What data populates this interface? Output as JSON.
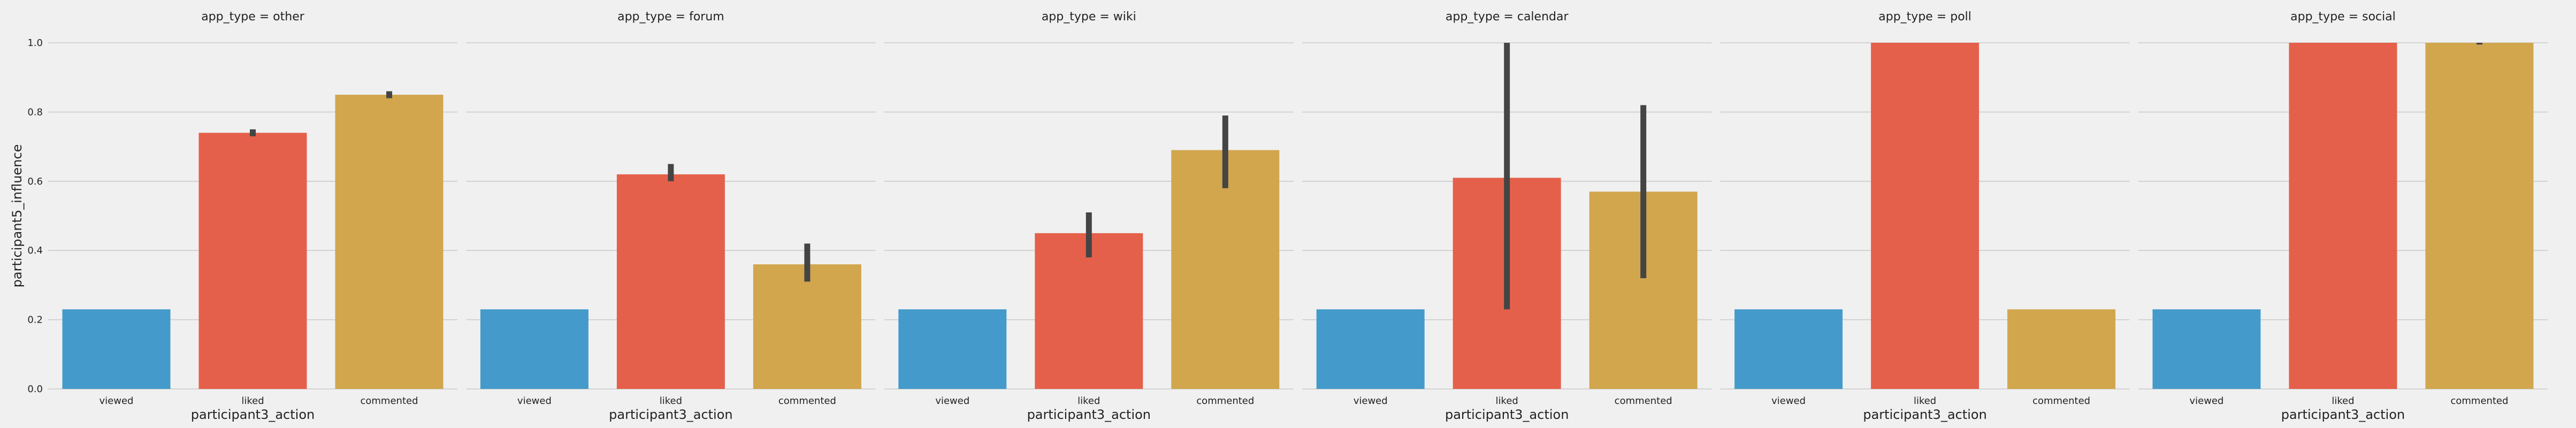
{
  "chart_data": {
    "type": "bar",
    "ylabel": "participant5_influence",
    "xlabel": "participant3_action",
    "ylim": [
      0,
      1.0
    ],
    "yticks": [
      "0.0",
      "0.2",
      "0.4",
      "0.6",
      "0.8",
      "1.0"
    ],
    "grid": true,
    "categories": [
      "viewed",
      "liked",
      "commented"
    ],
    "colors": [
      "#449bcb",
      "#e5604a",
      "#d1a64d"
    ],
    "panels": [
      {
        "title": "app_type = other",
        "values": [
          0.23,
          0.74,
          0.85
        ],
        "err_low": [
          null,
          0.73,
          0.84
        ],
        "err_high": [
          null,
          0.75,
          0.86
        ]
      },
      {
        "title": "app_type = forum",
        "values": [
          0.23,
          0.62,
          0.36
        ],
        "err_low": [
          null,
          0.6,
          0.31
        ],
        "err_high": [
          null,
          0.65,
          0.42
        ]
      },
      {
        "title": "app_type = wiki",
        "values": [
          0.23,
          0.45,
          0.69
        ],
        "err_low": [
          null,
          0.38,
          0.58
        ],
        "err_high": [
          null,
          0.51,
          0.79
        ]
      },
      {
        "title": "app_type = calendar",
        "values": [
          0.23,
          0.61,
          0.57
        ],
        "err_low": [
          null,
          0.23,
          0.32
        ],
        "err_high": [
          null,
          1.0,
          0.82
        ]
      },
      {
        "title": "app_type = poll",
        "values": [
          0.23,
          1.0,
          0.23
        ],
        "err_low": [
          null,
          null,
          null
        ],
        "err_high": [
          null,
          null,
          null
        ]
      },
      {
        "title": "app_type = social",
        "values": [
          0.23,
          1.0,
          1.0
        ],
        "err_low": [
          null,
          null,
          0.995
        ],
        "err_high": [
          null,
          null,
          1.0
        ]
      }
    ]
  }
}
